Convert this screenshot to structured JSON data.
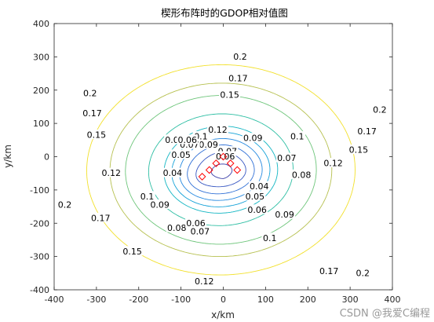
{
  "chart_data": {
    "type": "contour",
    "title": "楔形布阵时的GDOP相对值图",
    "xlabel": "x/km",
    "ylabel": "y/km",
    "xlim": [
      -400,
      400
    ],
    "ylim": [
      -400,
      400
    ],
    "xticks": [
      -400,
      -300,
      -200,
      -100,
      0,
      100,
      200,
      300,
      400
    ],
    "yticks": [
      -400,
      -300,
      -200,
      -100,
      0,
      100,
      200,
      300,
      400
    ],
    "grid": false,
    "stations": {
      "marker": "diamond",
      "color": "#ff0000",
      "points": [
        [
          -50,
          -60
        ],
        [
          -33,
          -40
        ],
        [
          -17,
          -20
        ],
        [
          0,
          0
        ],
        [
          17,
          -20
        ],
        [
          33,
          -40
        ]
      ]
    },
    "levels": [
      {
        "value": 0.04,
        "color": "#3b2c8f"
      },
      {
        "value": 0.05,
        "color": "#3a3ea8"
      },
      {
        "value": 0.06,
        "color": "#3656c2"
      },
      {
        "value": 0.07,
        "color": "#2f6fd6"
      },
      {
        "value": 0.08,
        "color": "#2488e0"
      },
      {
        "value": 0.09,
        "color": "#15a2d8"
      },
      {
        "value": 0.1,
        "color": "#10b5c2"
      },
      {
        "value": 0.12,
        "color": "#2dbea3"
      },
      {
        "value": 0.15,
        "color": "#6dc57a"
      },
      {
        "value": 0.17,
        "color": "#b6c04f"
      },
      {
        "value": 0.2,
        "color": "#f2e02a"
      }
    ],
    "contour_labels": [
      {
        "text": "0.2",
        "x": 40,
        "y": 300
      },
      {
        "text": "0.2",
        "x": -315,
        "y": 190
      },
      {
        "text": "0.2",
        "x": 370,
        "y": 140
      },
      {
        "text": "0.2",
        "x": -375,
        "y": -145
      },
      {
        "text": "0.2",
        "x": 330,
        "y": -350
      },
      {
        "text": "0.17",
        "x": 35,
        "y": 235
      },
      {
        "text": "0.17",
        "x": -310,
        "y": 130
      },
      {
        "text": "0.17",
        "x": 340,
        "y": 75
      },
      {
        "text": "0.17",
        "x": -290,
        "y": -185
      },
      {
        "text": "0.17",
        "x": 250,
        "y": -345
      },
      {
        "text": "0.15",
        "x": 15,
        "y": 185
      },
      {
        "text": "0.15",
        "x": -300,
        "y": 65
      },
      {
        "text": "0.15",
        "x": 320,
        "y": 20
      },
      {
        "text": "0.15",
        "x": -215,
        "y": -285
      },
      {
        "text": "0.12",
        "x": -13,
        "y": 80
      },
      {
        "text": "0.12",
        "x": -265,
        "y": -50
      },
      {
        "text": "0.12",
        "x": 260,
        "y": -20
      },
      {
        "text": "0.12",
        "x": -45,
        "y": -375
      },
      {
        "text": "0.1",
        "x": -53,
        "y": 60
      },
      {
        "text": "0.1",
        "x": 175,
        "y": 60
      },
      {
        "text": "0.1",
        "x": -180,
        "y": -120
      },
      {
        "text": "0.1",
        "x": 110,
        "y": -245
      },
      {
        "text": "0.09",
        "x": 70,
        "y": 55
      },
      {
        "text": "0.09",
        "x": -150,
        "y": -145
      },
      {
        "text": "0.09",
        "x": 145,
        "y": -175
      },
      {
        "text": "0.09",
        "x": -35,
        "y": 35
      },
      {
        "text": "0.08",
        "x": -115,
        "y": 50
      },
      {
        "text": "0.08",
        "x": 185,
        "y": -55
      },
      {
        "text": "0.08",
        "x": -110,
        "y": -215
      },
      {
        "text": "0.07",
        "x": -80,
        "y": 35
      },
      {
        "text": "0.07",
        "x": 150,
        "y": -5
      },
      {
        "text": "0.07",
        "x": -55,
        "y": -225
      },
      {
        "text": "0.07",
        "x": 10,
        "y": 15
      },
      {
        "text": "0.06",
        "x": -85,
        "y": 50
      },
      {
        "text": "0.06",
        "x": -65,
        "y": -200
      },
      {
        "text": "0.06",
        "x": 80,
        "y": -160
      },
      {
        "text": "0.06",
        "x": 5,
        "y": 0
      },
      {
        "text": "0.05",
        "x": -100,
        "y": 5
      },
      {
        "text": "0.05",
        "x": 75,
        "y": -120
      },
      {
        "text": "0.04",
        "x": -120,
        "y": -50
      },
      {
        "text": "0.04",
        "x": 85,
        "y": -90
      }
    ]
  },
  "watermark": "CSDN @我爱C编程"
}
